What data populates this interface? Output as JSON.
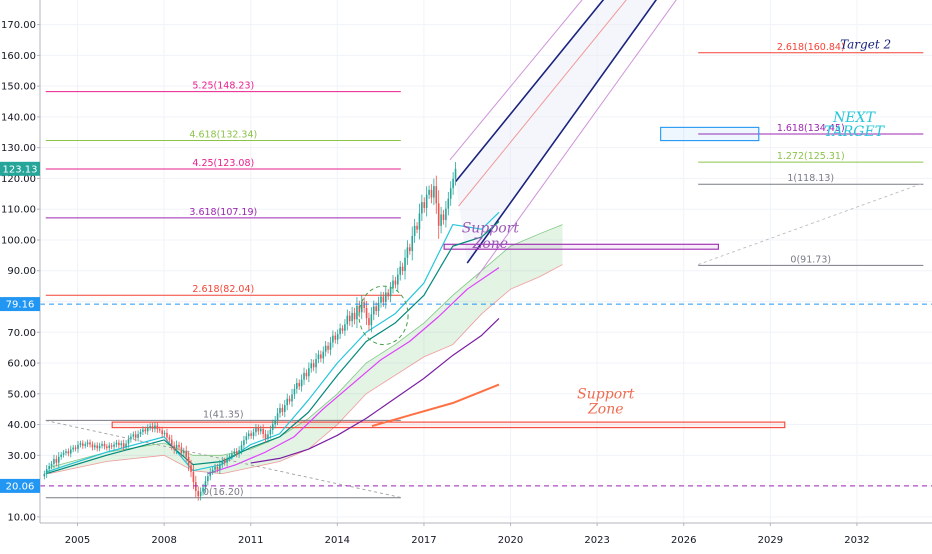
{
  "chart_data": {
    "type": "candlestick",
    "y_axis": {
      "range": [
        8,
        178
      ],
      "ticks": [
        10,
        20,
        30,
        40,
        50,
        60,
        70,
        80,
        90,
        100,
        110,
        120,
        130,
        140,
        150,
        160,
        170
      ],
      "tick_labels": [
        "10.00",
        "20.00",
        "30.00",
        "40.00",
        "50.00",
        "60.00",
        "70.00",
        "80.00",
        "90.00",
        "100.00",
        "110.00",
        "120.00",
        "130.00",
        "140.00",
        "150.00",
        "160.00",
        "170.00"
      ],
      "side": "left"
    },
    "x_axis": {
      "range": [
        2003.7,
        2034.6
      ],
      "ticks": [
        2005,
        2008,
        2011,
        2014,
        2017,
        2020,
        2023,
        2026,
        2029,
        2032
      ],
      "tick_labels": [
        "2005",
        "2008",
        "2011",
        "2014",
        "2017",
        "2020",
        "2023",
        "2026",
        "2029",
        "2032"
      ]
    },
    "price_badges": [
      {
        "value": 123.13,
        "label": "123.13",
        "color": "#26a69a"
      },
      {
        "value": 79.16,
        "label": "79.16",
        "color": "#2196f3"
      },
      {
        "value": 20.06,
        "label": "20.06",
        "color": "#2196f3"
      }
    ],
    "horizontal_dashed": [
      {
        "value": 79.16,
        "color": "#2196f3"
      },
      {
        "value": 20.06,
        "color": "#9c27b0"
      }
    ],
    "fib_extension_levels": [
      {
        "label": "5.25(148.23)",
        "value": 148.23,
        "color": "#e91e8c",
        "x0": 2003.9,
        "x1": 2016.2
      },
      {
        "label": "4.618(132.34)",
        "value": 132.34,
        "color": "#8bc34a",
        "x0": 2003.9,
        "x1": 2016.2
      },
      {
        "label": "4.25(123.08)",
        "value": 123.08,
        "color": "#e91e8c",
        "x0": 2003.9,
        "x1": 2016.2
      },
      {
        "label": "3.618(107.19)",
        "value": 107.19,
        "color": "#9c27b0",
        "x0": 2003.9,
        "x1": 2016.2
      },
      {
        "label": "2.618(82.04)",
        "value": 82.04,
        "color": "#f44336",
        "x0": 2003.9,
        "x1": 2016.2
      },
      {
        "label": "1(41.35)",
        "value": 41.35,
        "color": "#787b86",
        "x0": 2003.9,
        "x1": 2016.2
      },
      {
        "label": "0(16.20)",
        "value": 16.2,
        "color": "#787b86",
        "x0": 2003.9,
        "x1": 2016.2
      }
    ],
    "fib_target_levels": [
      {
        "label": "2.618(160.84)",
        "value": 160.84,
        "color": "#f44336",
        "x0": 2026.5,
        "x1": 2034.3
      },
      {
        "label": "1.618(134.45)",
        "value": 134.45,
        "color": "#9c27b0",
        "x0": 2026.5,
        "x1": 2034.3
      },
      {
        "label": "1.272(125.31)",
        "value": 125.31,
        "color": "#8bc34a",
        "x0": 2026.5,
        "x1": 2034.3
      },
      {
        "label": "1(118.13)",
        "value": 118.13,
        "color": "#787b86",
        "x0": 2026.5,
        "x1": 2034.3
      },
      {
        "label": "0(91.73)",
        "value": 91.73,
        "color": "#787b86",
        "x0": 2026.5,
        "x1": 2034.3
      }
    ],
    "annotations": [
      {
        "text": "Target 2",
        "x": 2032.3,
        "y": 162.2,
        "color": "#1a237e"
      },
      {
        "text": "NEXT",
        "x": 2031.9,
        "y": 138.3,
        "color": "#26c6da"
      },
      {
        "text": "TARGET",
        "x": 2031.9,
        "y": 133.8,
        "color": "#26c6da"
      },
      {
        "text": "Support",
        "x": 2019.3,
        "y": 102.4,
        "color": "#9b59b6"
      },
      {
        "text": "Zone",
        "x": 2019.3,
        "y": 97.4,
        "color": "#9b59b6"
      },
      {
        "text": "Support",
        "x": 2023.3,
        "y": 48.5,
        "color": "#ef6c50"
      },
      {
        "text": "Zone",
        "x": 2023.3,
        "y": 43.6,
        "color": "#ef6c50"
      }
    ],
    "support_zones": [
      {
        "x0": 2006.2,
        "x1": 2029.5,
        "y0": 39.0,
        "y1": 40.8,
        "color": "#f44336"
      },
      {
        "x0": 2017.7,
        "x1": 2027.2,
        "y0": 97.0,
        "y1": 98.6,
        "color": "#9c27b0"
      },
      {
        "x0": 2025.2,
        "x1": 2028.6,
        "y0": 132.3,
        "y1": 136.6,
        "color": "#2196f3"
      }
    ],
    "pitchfork": {
      "upper_rail": [
        [
          2018.1,
          119
        ],
        [
          2025.2,
          201
        ]
      ],
      "lower_rail": [
        [
          2018.5,
          92.5
        ],
        [
          2026.8,
          201
        ]
      ],
      "outer_upper": [
        [
          2017.9,
          126
        ],
        [
          2024.5,
          201
        ]
      ],
      "outer_lower": [
        [
          2018.8,
          87.5
        ],
        [
          2027.5,
          201
        ]
      ],
      "median": [
        [
          2018.2,
          111
        ],
        [
          2026.0,
          201
        ]
      ]
    },
    "candles": {
      "start": 2003.85,
      "step": 0.0833,
      "close": [
        24,
        25.5,
        26.5,
        27.2,
        28.8,
        27.6,
        29.5,
        30.2,
        30.8,
        31.3,
        30.6,
        31.9,
        32.5,
        32.1,
        33.4,
        33.9,
        33.1,
        33.6,
        34.2,
        33.5,
        32.6,
        33.2,
        32.3,
        33.1,
        33.7,
        32.9,
        32.4,
        33.2,
        32.8,
        33.5,
        34.1,
        33.3,
        33.9,
        32.7,
        33.8,
        35.2,
        36.1,
        36.8,
        35.7,
        36.9,
        37.6,
        38.4,
        37.8,
        38.9,
        39.5,
        38.6,
        39.7,
        38.5,
        38.1,
        36.9,
        37.3,
        35.8,
        35.1,
        33.2,
        31.8,
        33.4,
        32.6,
        30.8,
        31.5,
        29.5,
        26.8,
        24.6,
        21.3,
        18.4,
        16.7,
        18.2,
        19.5,
        21.6,
        23.2,
        24.6,
        25.3,
        26.2,
        25.4,
        27.1,
        28.3,
        27.6,
        28.9,
        29.6,
        30.5,
        31.3,
        30.4,
        31.7,
        33.3,
        34.9,
        36.2,
        37.1,
        36.3,
        37.5,
        38.9,
        37.8,
        38.6,
        36.9,
        35.4,
        36.8,
        38.3,
        40.1,
        41.5,
        43.7,
        45.4,
        44.1,
        46.3,
        48.4,
        47.5,
        49.8,
        51.6,
        53.5,
        52.4,
        54.6,
        56.8,
        55.7,
        58.3,
        59.9,
        58.6,
        61.3,
        62.8,
        61.5,
        63.7,
        65.6,
        64.3,
        66.7,
        68.9,
        67.6,
        69.4,
        71.3,
        70.5,
        72.6,
        75.4,
        73.6,
        76.3,
        74.2,
        78.6,
        76.5,
        79.8,
        77.9,
        74.6,
        72.3,
        75.8,
        78.4,
        76.9,
        79.6,
        81.6,
        79.8,
        82.9,
        81.7,
        84.4,
        86.8,
        85.5,
        88.7,
        91.3,
        89.9,
        94.2,
        97.6,
        96.4,
        101.3,
        104.6,
        103.4,
        108.6,
        112.3,
        110.4,
        114.7,
        116.3,
        113.8,
        117.5,
        111.9,
        104.6,
        108.3,
        106.5,
        110.2,
        113.4,
        116.8,
        119.9,
        123.13
      ],
      "up_color": "#26a69a",
      "down_color": "#ef5350"
    },
    "moving_averages": [
      {
        "color": "#26c6da",
        "points": [
          [
            2003.9,
            24.5
          ],
          [
            2006,
            31
          ],
          [
            2008,
            36
          ],
          [
            2009,
            25
          ],
          [
            2010,
            27
          ],
          [
            2011,
            33.5
          ],
          [
            2012,
            37
          ],
          [
            2013,
            48
          ],
          [
            2014,
            60
          ],
          [
            2015,
            70
          ],
          [
            2016,
            76
          ],
          [
            2017,
            86
          ],
          [
            2018,
            105
          ],
          [
            2019,
            103.5
          ],
          [
            2019.6,
            109
          ]
        ]
      },
      {
        "color": "#00897b",
        "points": [
          [
            2003.9,
            24
          ],
          [
            2006,
            30
          ],
          [
            2008,
            35
          ],
          [
            2009,
            27
          ],
          [
            2010,
            28
          ],
          [
            2011,
            32.5
          ],
          [
            2012,
            36
          ],
          [
            2013,
            44
          ],
          [
            2014,
            56
          ],
          [
            2015,
            67
          ],
          [
            2016,
            73
          ],
          [
            2017,
            82
          ],
          [
            2018,
            98
          ],
          [
            2019,
            101
          ],
          [
            2019.6,
            106
          ]
        ]
      },
      {
        "color": "#e040fb",
        "points": [
          [
            2009.5,
            24
          ],
          [
            2010.5,
            27
          ],
          [
            2011.5,
            31
          ],
          [
            2012.5,
            36
          ],
          [
            2013.5,
            45
          ],
          [
            2014.5,
            53
          ],
          [
            2015.5,
            61
          ],
          [
            2016.5,
            67
          ],
          [
            2017.5,
            75
          ],
          [
            2018.5,
            84
          ],
          [
            2019.6,
            91
          ]
        ]
      },
      {
        "color": "#7b1fa2",
        "points": [
          [
            2011,
            27.5
          ],
          [
            2012,
            29
          ],
          [
            2013,
            32
          ],
          [
            2014,
            36.5
          ],
          [
            2015,
            42
          ],
          [
            2016,
            48.5
          ],
          [
            2017,
            55
          ],
          [
            2018,
            62.5
          ],
          [
            2019,
            69
          ],
          [
            2019.6,
            74.5
          ]
        ]
      },
      {
        "color": "#ff7043",
        "points": [
          [
            2015.2,
            39.5
          ],
          [
            2016.5,
            43
          ],
          [
            2018,
            47
          ],
          [
            2019.6,
            53
          ]
        ]
      }
    ],
    "cloud": {
      "upper": [
        [
          2004,
          26
        ],
        [
          2006,
          31
        ],
        [
          2008,
          34
        ],
        [
          2009,
          30
        ],
        [
          2010,
          30
        ],
        [
          2011,
          32
        ],
        [
          2012,
          36
        ],
        [
          2013,
          42
        ],
        [
          2014,
          50
        ],
        [
          2015,
          60
        ],
        [
          2016,
          66
        ],
        [
          2017,
          73
        ],
        [
          2018,
          82
        ],
        [
          2019,
          90
        ],
        [
          2020,
          98
        ],
        [
          2021,
          102
        ],
        [
          2021.8,
          105
        ]
      ],
      "lower": [
        [
          2004,
          24
        ],
        [
          2006,
          28
        ],
        [
          2008,
          30
        ],
        [
          2009,
          25
        ],
        [
          2010,
          24
        ],
        [
          2011,
          26
        ],
        [
          2012,
          28
        ],
        [
          2013,
          32
        ],
        [
          2014,
          40
        ],
        [
          2015,
          50
        ],
        [
          2016,
          56
        ],
        [
          2017,
          62
        ],
        [
          2018,
          66
        ],
        [
          2019,
          76
        ],
        [
          2020,
          84
        ],
        [
          2021,
          88
        ],
        [
          2021.8,
          92
        ]
      ],
      "color": "#81c784"
    },
    "ellipse": {
      "cx": 2015.6,
      "cy": 75.5,
      "rx": 0.85,
      "ry": 9.5,
      "color": "#43a047"
    },
    "trend_lines": [
      {
        "from": [
          2003.9,
          41.3
        ],
        "to": [
          2016.2,
          16.3
        ],
        "color": "#9e9e9e",
        "dashed": true
      },
      {
        "from": [
          2026.5,
          92.0
        ],
        "to": [
          2034.3,
          118.5
        ],
        "color": "#bdbdbd",
        "dashed": true
      }
    ]
  }
}
